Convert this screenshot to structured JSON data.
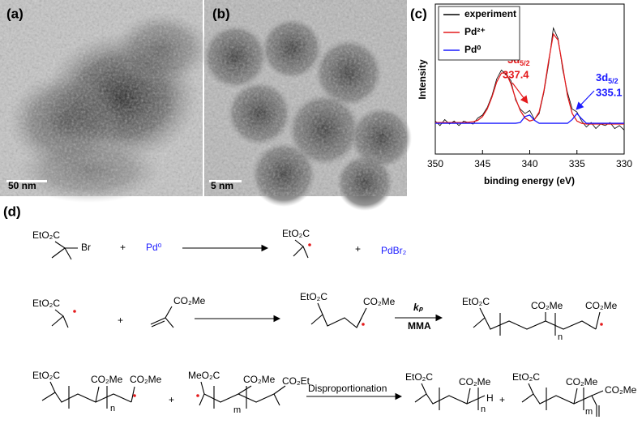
{
  "panels": [
    {
      "label": "(a)",
      "scale": "50 nm"
    },
    {
      "label": "(b)",
      "scale": "5 nm"
    }
  ],
  "chart_data": {
    "type": "line",
    "label": "(c)",
    "xlabel": "binding energy (eV)",
    "ylabel": "Intensity",
    "x": [
      350,
      349.5,
      349,
      348.5,
      348,
      347.5,
      347,
      346.5,
      346,
      345.5,
      345,
      344.5,
      344,
      343.5,
      343,
      342.5,
      342,
      341.5,
      341,
      340.5,
      340,
      339.5,
      339,
      338.5,
      338,
      337.5,
      337,
      336.5,
      336,
      335.5,
      335,
      334.5,
      334,
      333.5,
      333,
      332.5,
      332,
      331.5,
      331,
      330.5,
      330
    ],
    "xlim": [
      350,
      330
    ],
    "xticks": [
      350,
      345,
      340,
      335,
      330
    ],
    "ylim": [
      0,
      100
    ],
    "legend": "upper left",
    "series": [
      {
        "name": "experiment",
        "color": "#000000",
        "values": [
          22,
          19,
          23,
          20,
          22,
          19,
          22,
          21,
          20,
          24,
          26,
          31,
          39,
          50,
          56,
          53,
          49,
          36,
          30,
          27,
          29,
          23,
          27,
          41,
          60,
          84,
          77,
          56,
          41,
          30,
          28,
          22,
          18,
          21,
          17,
          20,
          19,
          21,
          17,
          19,
          16
        ]
      },
      {
        "name": "Pd²⁺",
        "color": "#e41a1c",
        "values": [
          21,
          21,
          21,
          21,
          21,
          21,
          21,
          21.2,
          21.5,
          22.5,
          25,
          30,
          38,
          48,
          54,
          54,
          47,
          37,
          29,
          24,
          22,
          23,
          28,
          42,
          62,
          80,
          76,
          58,
          39,
          27,
          22,
          20.5,
          20,
          20,
          20,
          20,
          20,
          20,
          20,
          20,
          20
        ]
      },
      {
        "name": "Pd⁰",
        "color": "#1a1aff",
        "values": [
          20.5,
          20.5,
          20.5,
          20.5,
          20.5,
          20.5,
          20.5,
          20.5,
          20.5,
          20.5,
          20.5,
          20.5,
          20.5,
          20.5,
          20.5,
          20.5,
          20.5,
          20.5,
          21,
          25,
          26,
          22.5,
          20.5,
          20.5,
          20.5,
          20.5,
          20.5,
          20.5,
          20.5,
          23,
          27,
          23.5,
          20.5,
          20.5,
          20.5,
          20.5,
          20.5,
          20.5,
          20.5,
          20.5,
          20.5
        ]
      }
    ],
    "annotations": [
      {
        "text": "3d",
        "sub": "5/2",
        "value": 337.4,
        "color": "#e41a1c"
      },
      {
        "text": "3d",
        "sub": "5/2",
        "value": 335.1,
        "color": "#1a1aff"
      }
    ]
  },
  "scheme": {
    "label": "(d)",
    "row1": [
      "EtO₂C",
      "Br",
      "+",
      "Pd⁰",
      "EtO₂C",
      "+",
      "PdBr₂"
    ],
    "row2": [
      "EtO₂C",
      "+",
      "CO₂Me",
      "EtO₂C",
      "CO₂Me",
      "kₚ",
      "MMA",
      "EtO₂C",
      "CO₂Me",
      "CO₂Me",
      "n"
    ],
    "row3": [
      "EtO₂C",
      "CO₂Me",
      "CO₂Me",
      "n",
      "+",
      "MeO₂C",
      "CO₂Me",
      "CO₂Et",
      "m",
      "Disproportionation",
      "EtO₂C",
      "CO₂Me",
      "n",
      "H",
      "+",
      "EtO₂C",
      "CO₂Me",
      "CO₂Me",
      "m"
    ]
  }
}
